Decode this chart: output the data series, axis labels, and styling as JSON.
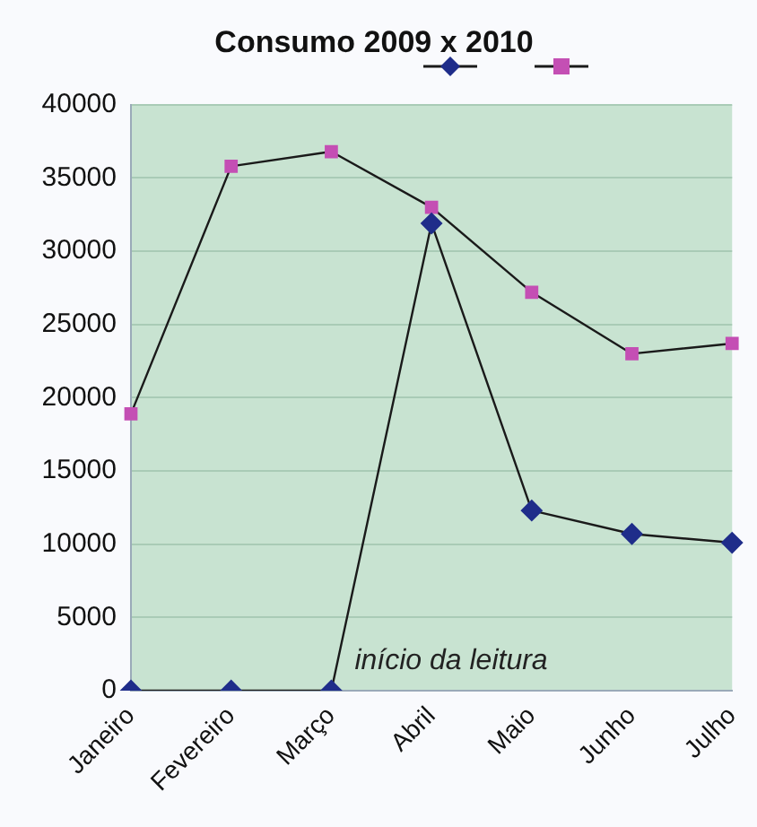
{
  "chart_data": {
    "type": "line",
    "title": "Consumo 2009 x 2010",
    "categories": [
      "Janeiro",
      "Fevereiro",
      "Março",
      "Abril",
      "Maio",
      "Junho",
      "Julho"
    ],
    "series": [
      {
        "color": "#1f2d8a",
        "marker": "diamond",
        "values": [
          0,
          0,
          0,
          31900,
          12300,
          10700,
          10100
        ]
      },
      {
        "color": "#c44fb4",
        "marker": "square",
        "values": [
          18900,
          35800,
          36800,
          33000,
          27200,
          23000,
          23700
        ]
      }
    ],
    "ylim": [
      0,
      40000
    ],
    "yticks": [
      0,
      5000,
      10000,
      15000,
      20000,
      25000,
      30000,
      35000,
      40000
    ],
    "grid": "y",
    "annotations": [
      {
        "text": "início da leitura",
        "x": "Março",
        "y": 0
      }
    ]
  }
}
